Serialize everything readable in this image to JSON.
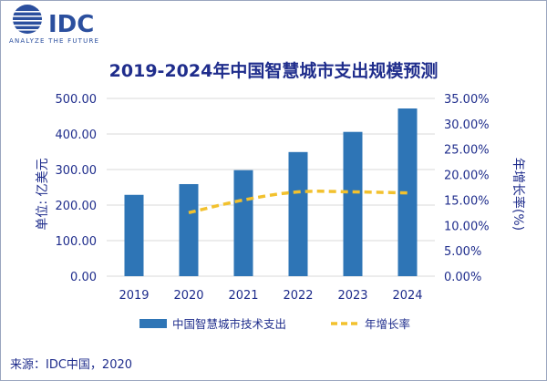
{
  "logo": {
    "name": "IDC",
    "tagline": "ANALYZE THE FUTURE"
  },
  "chart_data": {
    "type": "bar",
    "title": "2019-2024年中国智慧城市支出规模预测",
    "categories": [
      "2019",
      "2020",
      "2021",
      "2022",
      "2023",
      "2024"
    ],
    "y_left": {
      "label": "单位: 亿美元",
      "range": [
        0,
        500
      ],
      "ticks": [
        "0.00",
        "100.00",
        "200.00",
        "300.00",
        "400.00",
        "500.00"
      ]
    },
    "y_right": {
      "label": "年增长率(%)",
      "range": [
        0,
        35
      ],
      "ticks": [
        "0.00%",
        "5.00%",
        "10.00%",
        "15.00%",
        "20.00%",
        "25.00%",
        "30.00%",
        "35.00%"
      ]
    },
    "series": [
      {
        "name": "中国智慧城市技术支出",
        "type": "bar",
        "axis": "left",
        "values": [
          228.8,
          259.0,
          298.2,
          349.2,
          405.9,
          471.8
        ],
        "color": "#2e75b6"
      },
      {
        "name": "年增长率",
        "type": "line",
        "style": "dashed",
        "axis": "right",
        "values": [
          null,
          12.5,
          15.0,
          16.6,
          16.6,
          16.4
        ],
        "color": "#f2c12e"
      }
    ],
    "grid": true,
    "legend": "bottom"
  },
  "source": "来源：IDC中国，2020",
  "colors": {
    "title": "#1f2d8c",
    "axis_text": "#1f2d8c",
    "grid": "#d9d9d9"
  }
}
